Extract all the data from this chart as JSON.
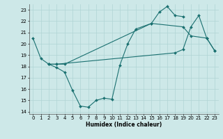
{
  "xlabel": "Humidex (Indice chaleur)",
  "xlim": [
    -0.5,
    23.5
  ],
  "ylim": [
    13.8,
    23.5
  ],
  "yticks": [
    14,
    15,
    16,
    17,
    18,
    19,
    20,
    21,
    22,
    23
  ],
  "xticks": [
    0,
    1,
    2,
    3,
    4,
    5,
    6,
    7,
    8,
    9,
    10,
    11,
    12,
    13,
    14,
    15,
    16,
    17,
    18,
    19,
    20,
    21,
    22,
    23
  ],
  "bg_color": "#cde8e8",
  "line_color": "#1a7070",
  "grid_color": "#b0d4d4",
  "line1_x": [
    0,
    1,
    2,
    3,
    4,
    5,
    6,
    7,
    8,
    9,
    10,
    11,
    12,
    13,
    15,
    19,
    20,
    22,
    23
  ],
  "line1_y": [
    20.5,
    18.7,
    18.2,
    17.9,
    17.5,
    15.9,
    14.5,
    14.4,
    15.0,
    15.2,
    15.1,
    18.1,
    20.0,
    21.3,
    21.8,
    21.5,
    20.7,
    20.5,
    19.4
  ],
  "line2_x": [
    2,
    3,
    4,
    15,
    16,
    17,
    18,
    19
  ],
  "line2_y": [
    18.2,
    18.2,
    18.2,
    21.8,
    22.8,
    23.3,
    22.5,
    22.4
  ],
  "line3_x": [
    2,
    3,
    18,
    19,
    20,
    21,
    22,
    23
  ],
  "line3_y": [
    18.2,
    18.2,
    19.2,
    19.5,
    21.5,
    22.5,
    20.5,
    19.4
  ]
}
